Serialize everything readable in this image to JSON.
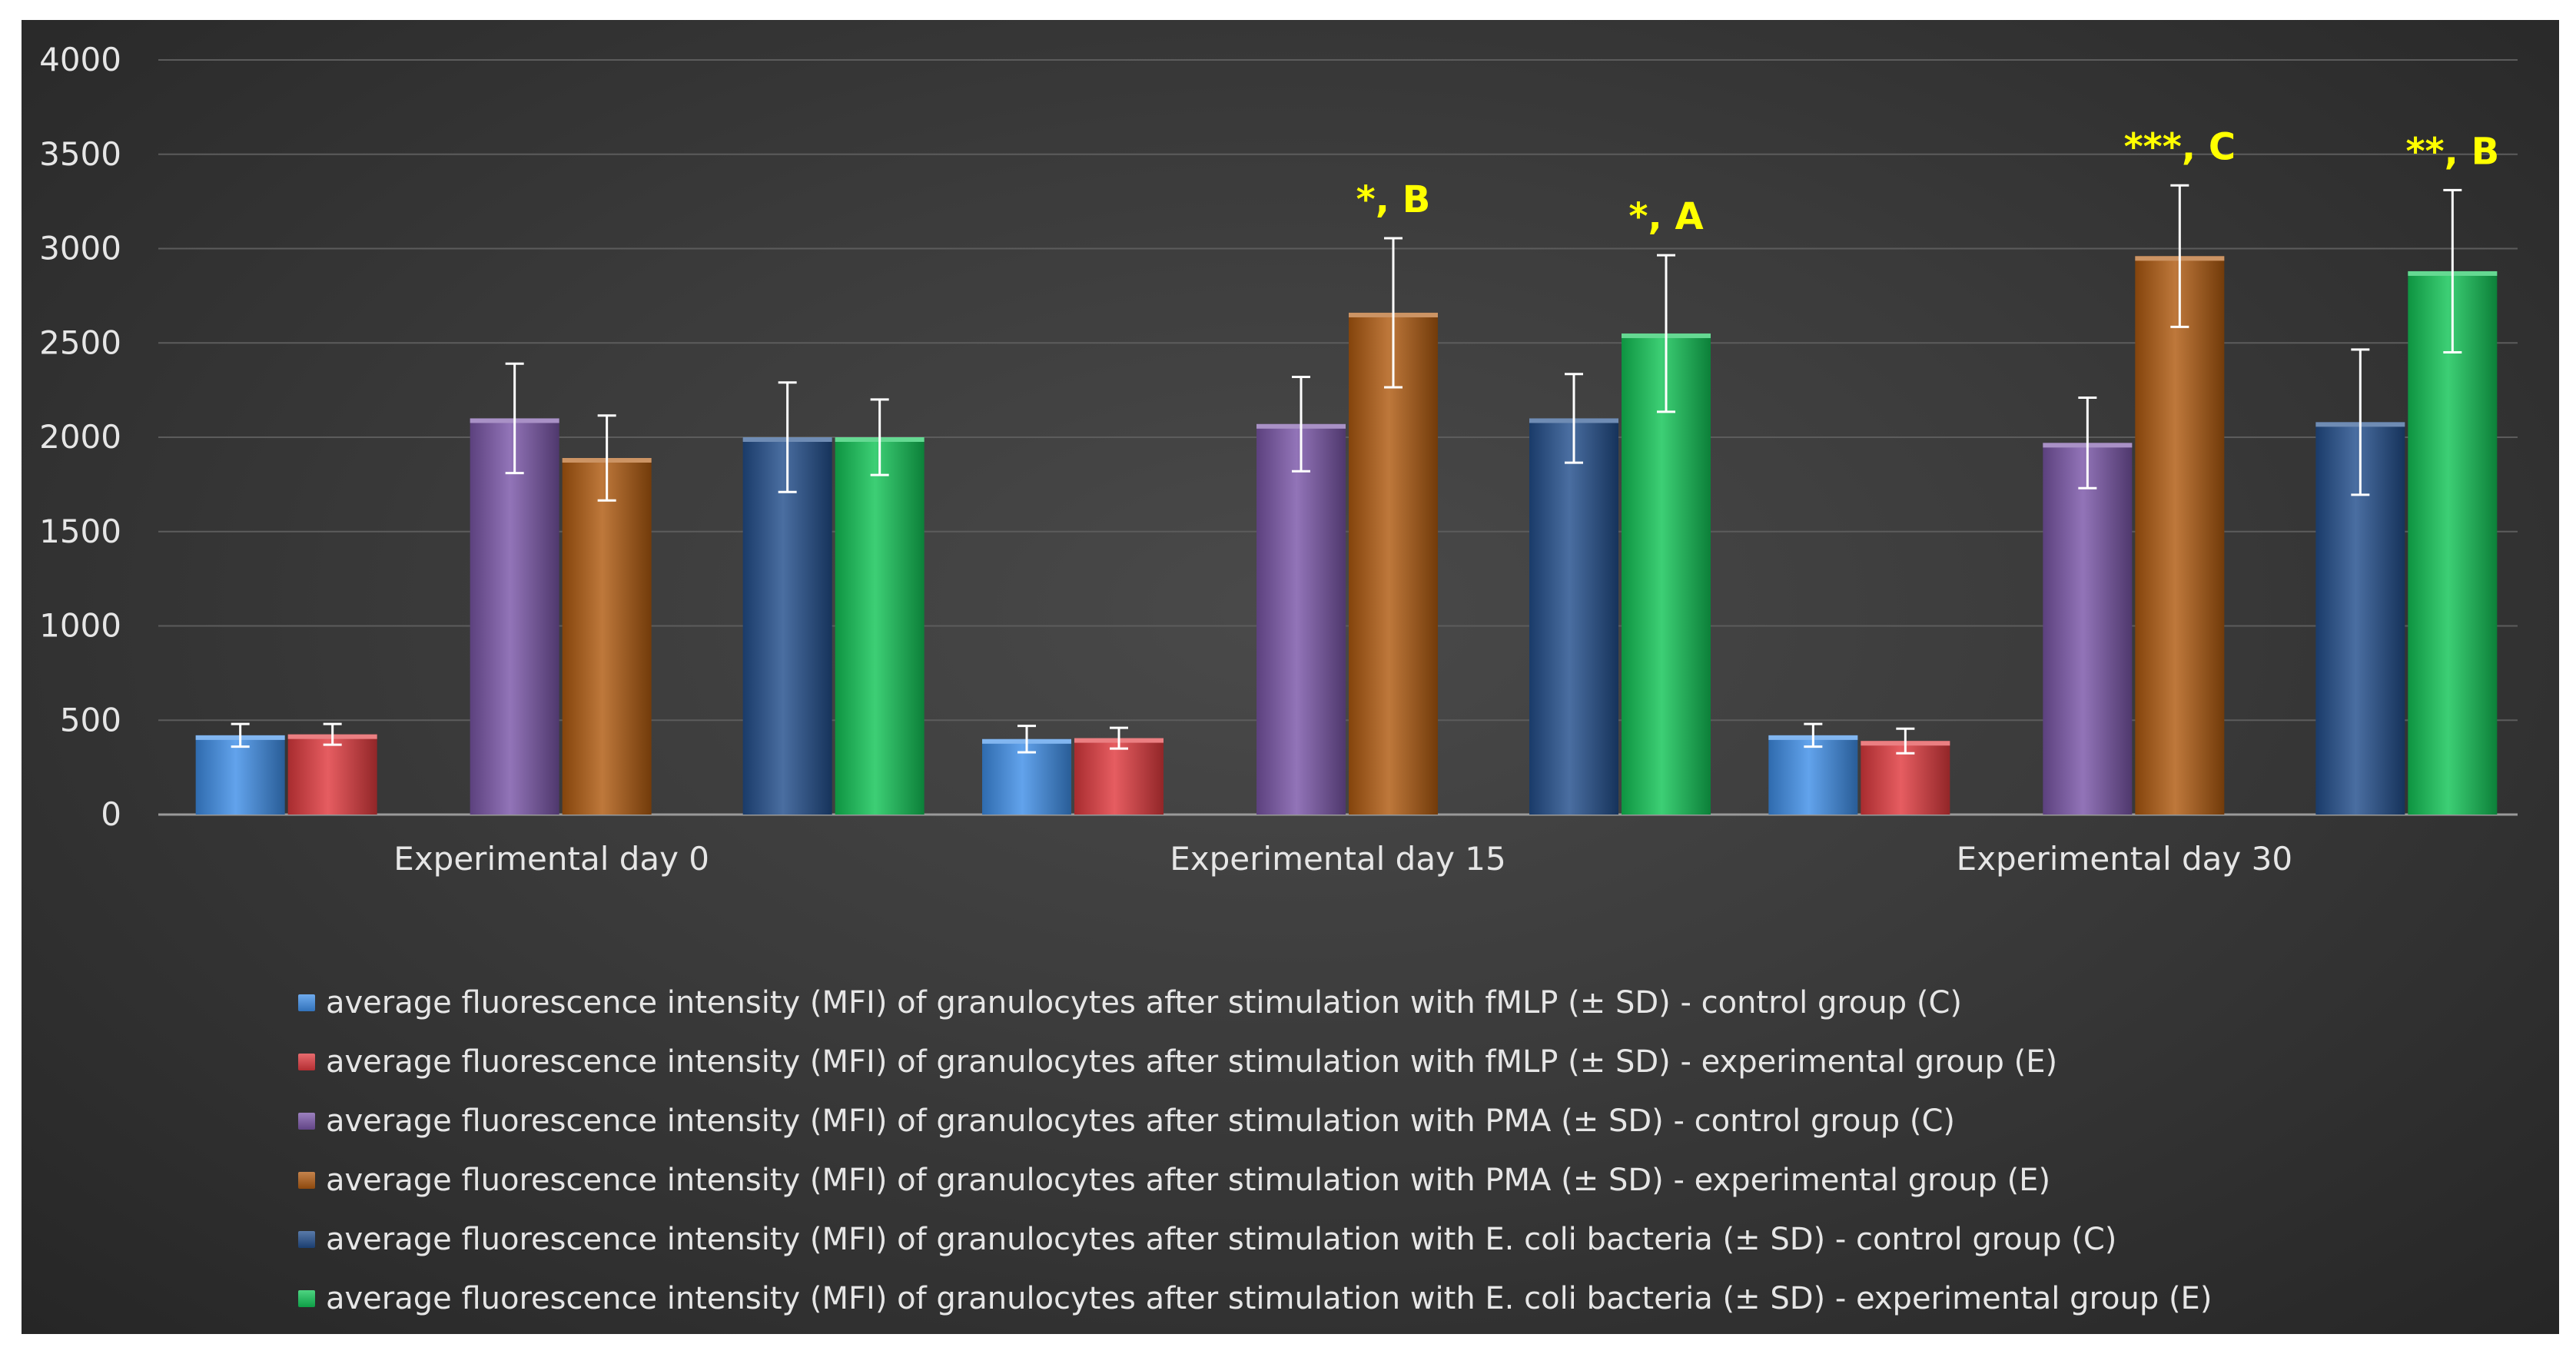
{
  "chart_data": {
    "type": "bar",
    "categories": [
      "Experimental day 0",
      "Experimental day 15",
      "Experimental day 30"
    ],
    "ylim": [
      0,
      4000
    ],
    "yticks": [
      0,
      500,
      1000,
      1500,
      2000,
      2500,
      3000,
      3500,
      4000
    ],
    "grid": true,
    "legend_position": "bottom",
    "series": [
      {
        "name": "average fluorescence intensity (MFI) of granulocytes after stimulation with fMLP (± SD) - control group (C)",
        "color": "#3f8fe8",
        "values": [
          420,
          400,
          420
        ],
        "error": [
          60,
          70,
          60
        ],
        "annotations": [
          "",
          "",
          ""
        ]
      },
      {
        "name": "average fluorescence intensity (MFI) of granulocytes after stimulation with fMLP (± SD) - experimental group (E)",
        "color": "#e03a3e",
        "values": [
          425,
          405,
          390
        ],
        "error": [
          55,
          55,
          65
        ],
        "annotations": [
          "",
          "",
          ""
        ]
      },
      {
        "name": "average fluorescence intensity (MFI) of granulocytes after stimulation with PMA (± SD) - control group (C)",
        "color": "#7a56a8",
        "values": [
          2100,
          2070,
          1970
        ],
        "error": [
          290,
          250,
          240
        ],
        "annotations": [
          "",
          "",
          ""
        ]
      },
      {
        "name": "average fluorescence intensity (MFI) of granulocytes after stimulation with PMA (± SD) - experimental group (E)",
        "color": "#b05a10",
        "values": [
          1890,
          2660,
          2960
        ],
        "error": [
          225,
          395,
          375
        ],
        "annotations": [
          "",
          "*, B",
          "***, C"
        ]
      },
      {
        "name": "average fluorescence intensity (MFI) of granulocytes after stimulation with E. coli bacteria (± SD) - control group (C)",
        "color": "#224e8c",
        "values": [
          2000,
          2100,
          2080
        ],
        "error": [
          290,
          235,
          385
        ],
        "annotations": [
          "",
          "",
          ""
        ]
      },
      {
        "name": "average fluorescence intensity (MFI) of granulocytes after stimulation with E. coli bacteria (± SD) - experimental group (E)",
        "color": "#12c557",
        "values": [
          2000,
          2550,
          2880
        ],
        "error": [
          200,
          415,
          430
        ],
        "annotations": [
          "",
          "*, A",
          "**, B"
        ]
      }
    ]
  }
}
